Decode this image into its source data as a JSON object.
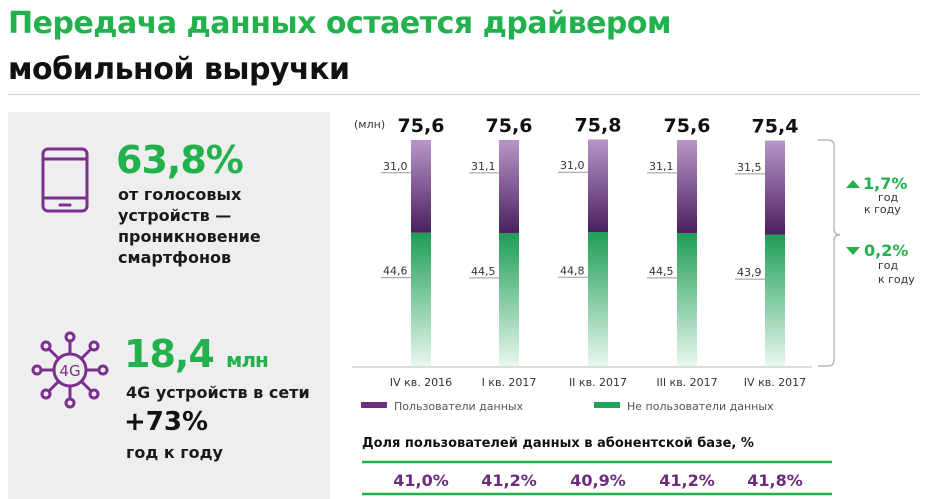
{
  "header": {
    "title_line1": "Передача данных остается драйвером",
    "title_line2": "мобильной выручки"
  },
  "left_panel": {
    "block1": {
      "icon": "tablet-icon",
      "value": "63,8%",
      "text_line1": "от голосовых",
      "text_line2": "устройств —",
      "text_line3": "проникновение",
      "text_line4": "смартфонов"
    },
    "block2": {
      "icon": "4g-network-icon",
      "icon_label": "4G",
      "value": "18,4",
      "unit": "млн",
      "text_line1": "4G устройств в сети",
      "growth": "+73%",
      "growth_label": "год к году"
    }
  },
  "chart_data": {
    "type": "bar",
    "stacked": true,
    "unit_label": "(млн)",
    "categories": [
      "IV кв. 2016",
      "I кв. 2017",
      "II кв. 2017",
      "III кв. 2017",
      "IV кв. 2017"
    ],
    "totals": [
      "75,6",
      "75,6",
      "75,8",
      "75,6",
      "75,4"
    ],
    "series": [
      {
        "name": "Не пользователи данных",
        "values": [
          44.6,
          44.5,
          44.8,
          44.5,
          43.9
        ],
        "labels": [
          "44,6",
          "44,5",
          "44,8",
          "44,5",
          "43,9"
        ],
        "color": "#1fa55a"
      },
      {
        "name": "Пользователи данных",
        "values": [
          31.0,
          31.1,
          31.0,
          31.1,
          31.5
        ],
        "labels": [
          "31,0",
          "31,1",
          "31,0",
          "31,1",
          "31,5"
        ],
        "color": "#6b2d7e"
      }
    ],
    "legend_position": "bottom",
    "annotations": {
      "top": {
        "arrow": "up",
        "value": "1,7%",
        "line1": "год",
        "line2": "к году"
      },
      "bottom": {
        "arrow": "down",
        "value": "0,2%",
        "line1": "год",
        "line2": "к году"
      }
    }
  },
  "share_table": {
    "title": "Доля пользователей данных в абонентской базе, %",
    "values": [
      "41,0%",
      "41,2%",
      "40,9%",
      "41,2%",
      "41,8%"
    ]
  },
  "colors": {
    "green": "#22b14c",
    "purple": "#6b2d7e",
    "bar_green": "#1fa55a"
  }
}
